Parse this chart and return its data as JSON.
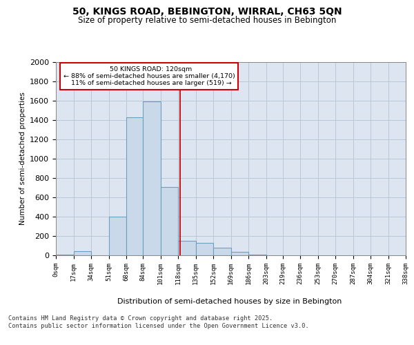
{
  "title_line1": "50, KINGS ROAD, BEBINGTON, WIRRAL, CH63 5QN",
  "title_line2": "Size of property relative to semi-detached houses in Bebington",
  "xlabel": "Distribution of semi-detached houses by size in Bebington",
  "ylabel": "Number of semi-detached properties",
  "property_size": 120,
  "property_label": "50 KINGS ROAD: 120sqm",
  "pct_smaller": 88,
  "count_smaller": 4170,
  "pct_larger": 11,
  "count_larger": 519,
  "bin_edges": [
    0,
    17,
    34,
    51,
    68,
    84,
    101,
    118,
    135,
    152,
    169,
    186,
    203,
    219,
    236,
    253,
    270,
    287,
    304,
    321,
    338
  ],
  "bin_counts": [
    5,
    40,
    0,
    400,
    1430,
    1590,
    710,
    150,
    130,
    80,
    35,
    5,
    0,
    0,
    0,
    0,
    0,
    0,
    0,
    0
  ],
  "bar_facecolor": "#c9d9ea",
  "bar_edgecolor": "#6a9fc0",
  "vline_color": "#cc0000",
  "grid_color": "#b8c8d8",
  "background_color": "#dde6f0",
  "ylim_max": 2000,
  "yticks": [
    0,
    200,
    400,
    600,
    800,
    1000,
    1200,
    1400,
    1600,
    1800,
    2000
  ],
  "footer": "Contains HM Land Registry data © Crown copyright and database right 2025.\nContains public sector information licensed under the Open Government Licence v3.0."
}
